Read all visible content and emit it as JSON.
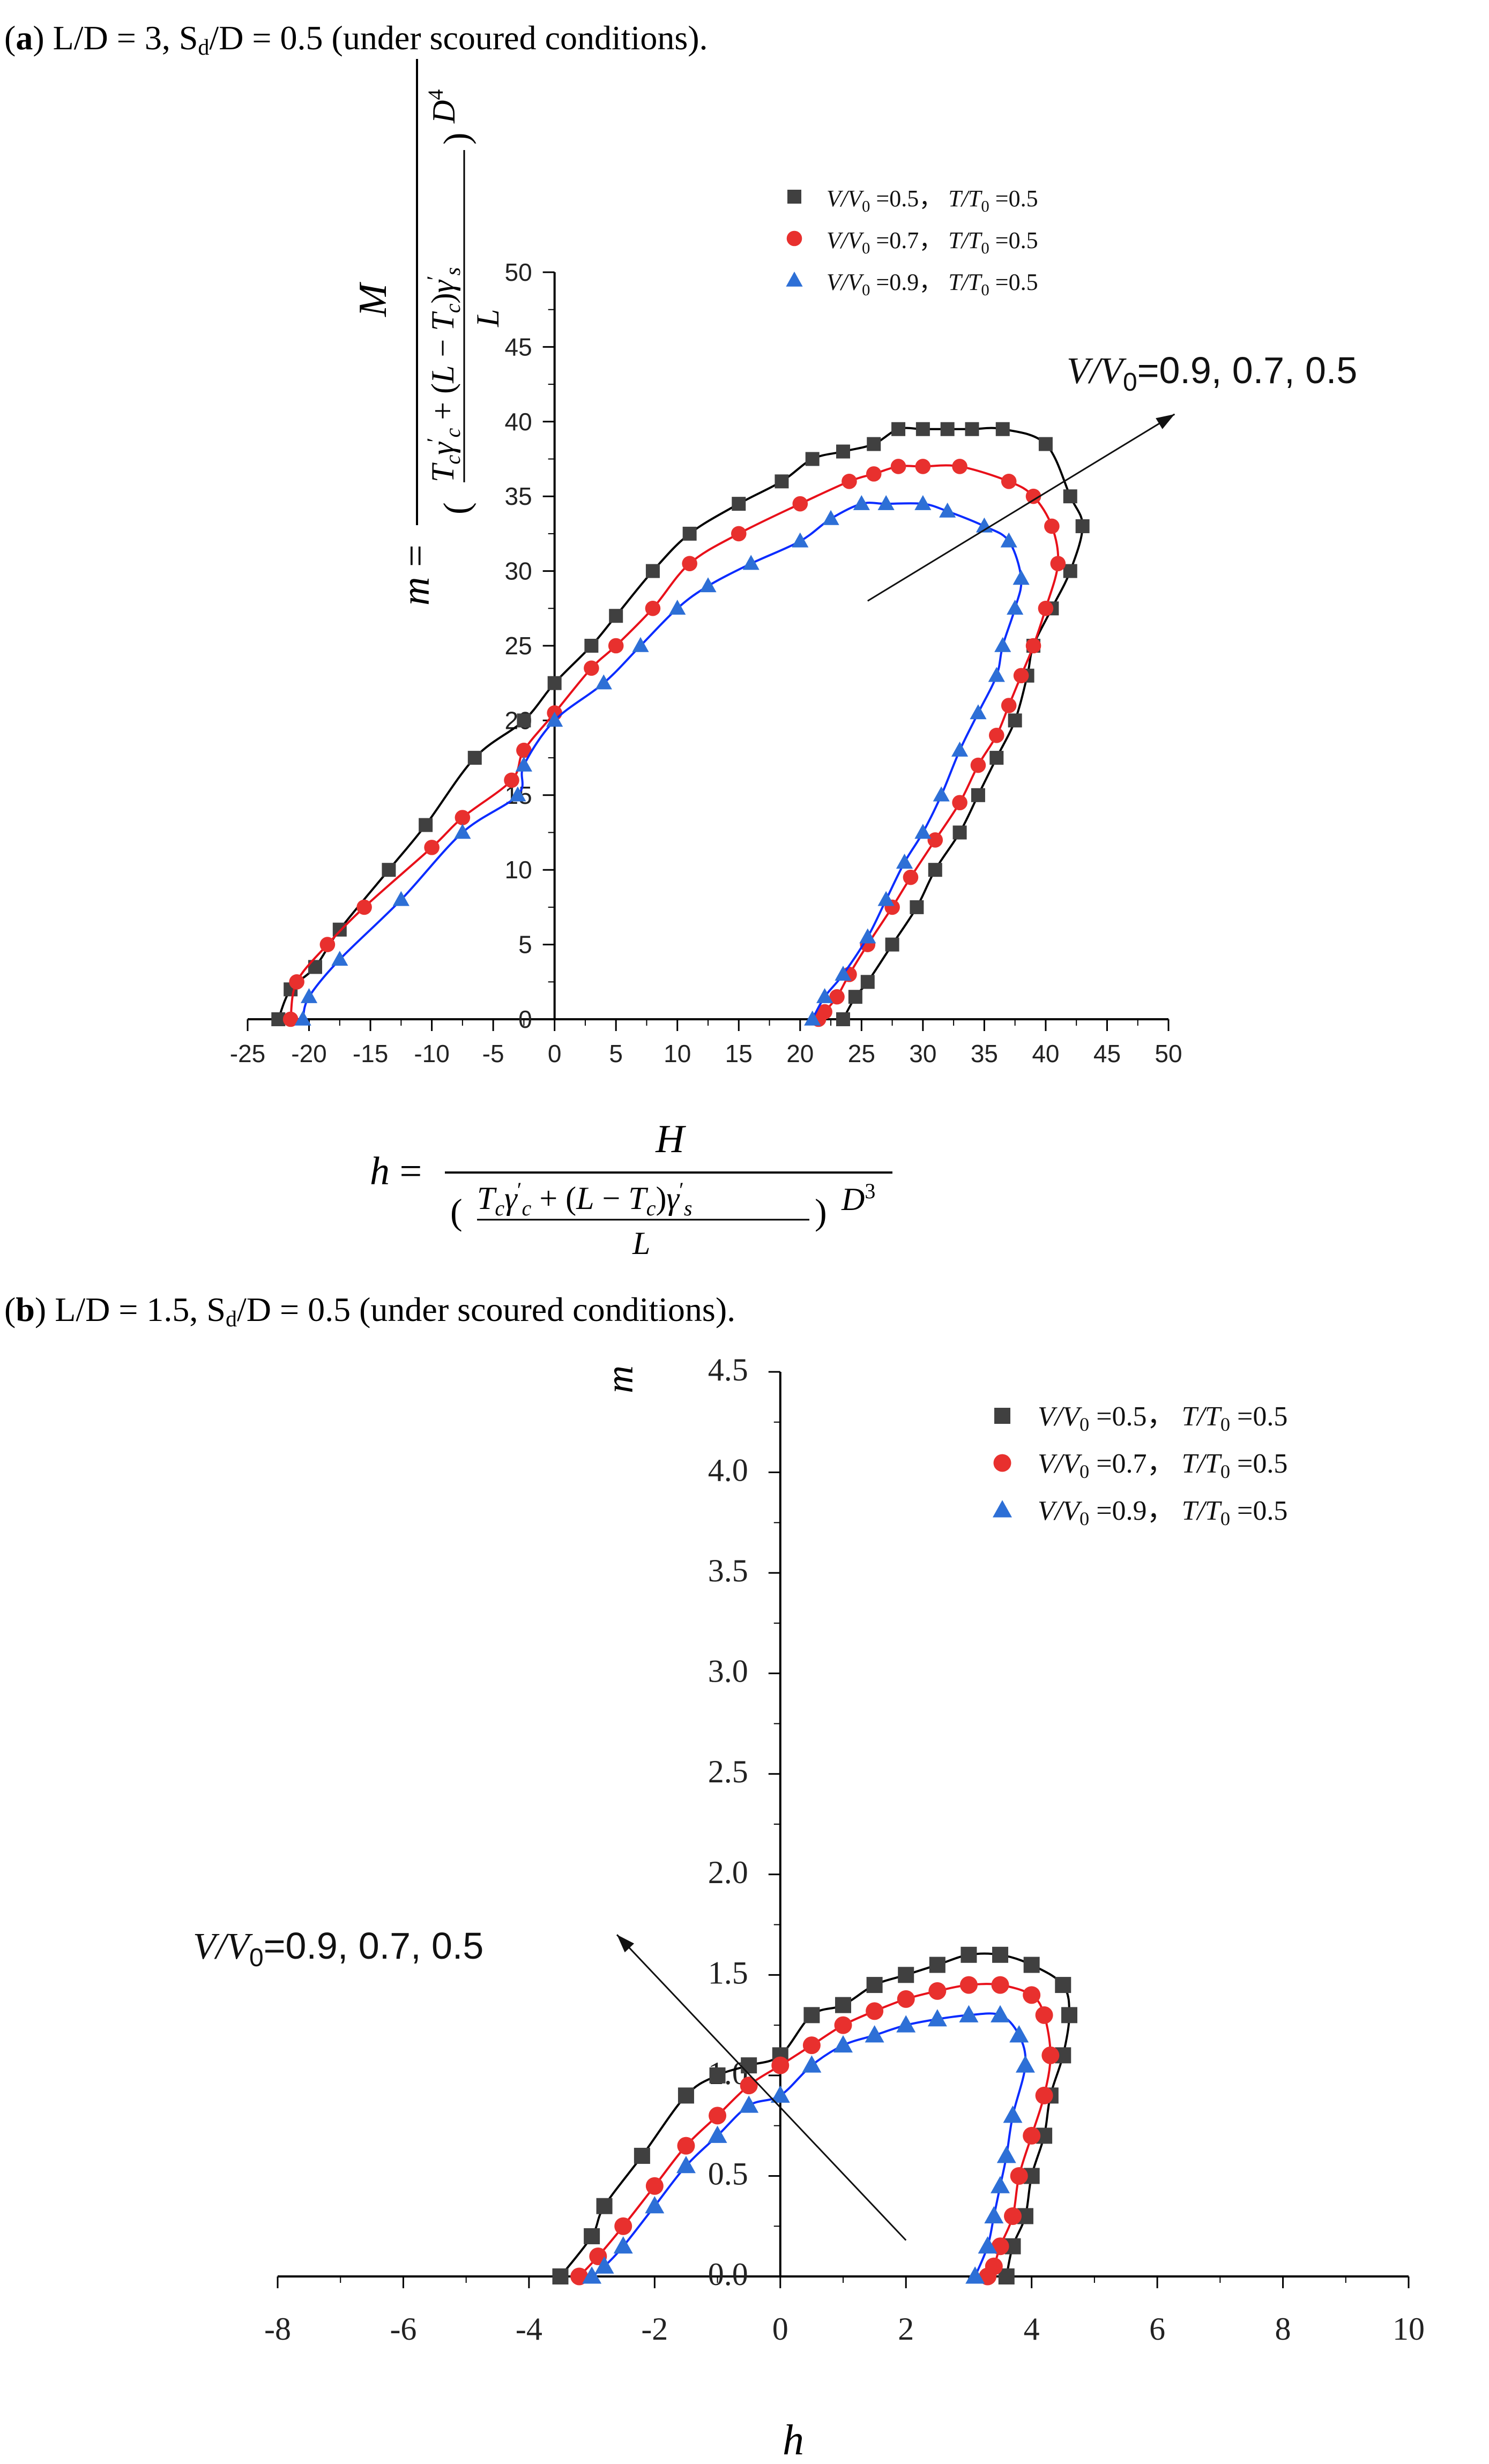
{
  "captions": {
    "a": {
      "label": "a",
      "text": " L/D = 3, S",
      "sub": "d",
      "rest": "/D = 0.5 (under scoured conditions)."
    },
    "b": {
      "label": "b",
      "text": " L/D = 1.5, S",
      "sub": "d",
      "rest": "/D = 0.5 (under scoured conditions)."
    }
  },
  "colors": {
    "s05": "#404040",
    "s07": "#e8302e",
    "s09": "#2d6fd6",
    "line05": "#000000",
    "line07": "#e8101a",
    "line09": "#0a2cff",
    "arrow": "#111111"
  },
  "chart_data": [
    {
      "type": "scatter",
      "panel": "a",
      "ylabel": "m = M / (((T_c γ'_c + (L − T_c) γ'_s) / L) D^4)",
      "xlabel": "h = H / (((T_c γ'_c + (L − T_c) γ'_s) / L) D^3)",
      "xlim": [
        -25,
        50
      ],
      "ylim": [
        0,
        50
      ],
      "xticks": [
        -25,
        -20,
        -15,
        -10,
        -5,
        0,
        5,
        10,
        15,
        20,
        25,
        30,
        35,
        40,
        45,
        50
      ],
      "yticks": [
        0,
        5,
        10,
        15,
        20,
        25,
        30,
        35,
        40,
        45,
        50
      ],
      "annotation": "V/V0=0.9, 0.7, 0.5",
      "annotation_arrow": {
        "from": [
          25.5,
          28
        ],
        "to": [
          50.5,
          40.5
        ]
      },
      "legend": {
        "placement": "top-right"
      },
      "series": [
        {
          "name": "V/V0 =0.5，T/T0=0.5",
          "marker": "square",
          "points": [
            [
              -22.5,
              0
            ],
            [
              -21.5,
              2
            ],
            [
              -19.5,
              3.5
            ],
            [
              -17.5,
              6
            ],
            [
              -13.5,
              10
            ],
            [
              -10.5,
              13
            ],
            [
              -6.5,
              17.5
            ],
            [
              -2.5,
              20
            ],
            [
              0,
              22.5
            ],
            [
              3,
              25
            ],
            [
              5,
              27
            ],
            [
              8,
              30
            ],
            [
              11,
              32.5
            ],
            [
              15,
              34.5
            ],
            [
              18.5,
              36
            ],
            [
              21,
              37.5
            ],
            [
              23.5,
              38
            ],
            [
              26,
              38.5
            ],
            [
              28,
              39.5
            ],
            [
              30,
              39.5
            ],
            [
              32,
              39.5
            ],
            [
              34,
              39.5
            ],
            [
              36.5,
              39.5
            ],
            [
              40,
              38.5
            ],
            [
              42,
              35
            ],
            [
              43,
              33
            ],
            [
              42,
              30
            ],
            [
              40.5,
              27.5
            ],
            [
              39,
              25
            ],
            [
              38.5,
              23
            ],
            [
              37.5,
              20
            ],
            [
              36,
              17.5
            ],
            [
              34.5,
              15
            ],
            [
              33,
              12.5
            ],
            [
              31,
              10
            ],
            [
              29.5,
              7.5
            ],
            [
              27.5,
              5
            ],
            [
              25.5,
              2.5
            ],
            [
              24.5,
              1.5
            ],
            [
              23.5,
              0
            ]
          ]
        },
        {
          "name": "V/V0 =0.7，T/T0=0.5",
          "marker": "circle",
          "points": [
            [
              -21.5,
              0
            ],
            [
              -21,
              2.5
            ],
            [
              -18.5,
              5
            ],
            [
              -15.5,
              7.5
            ],
            [
              -10,
              11.5
            ],
            [
              -7.5,
              13.5
            ],
            [
              -3.5,
              16
            ],
            [
              -2.5,
              18
            ],
            [
              0,
              20.5
            ],
            [
              3,
              23.5
            ],
            [
              5,
              25
            ],
            [
              8,
              27.5
            ],
            [
              11,
              30.5
            ],
            [
              15,
              32.5
            ],
            [
              20,
              34.5
            ],
            [
              24,
              36
            ],
            [
              26,
              36.5
            ],
            [
              28,
              37
            ],
            [
              30,
              37
            ],
            [
              33,
              37
            ],
            [
              37,
              36
            ],
            [
              39,
              35
            ],
            [
              40.5,
              33
            ],
            [
              41,
              30.5
            ],
            [
              40,
              27.5
            ],
            [
              39,
              25
            ],
            [
              38,
              23
            ],
            [
              37,
              21
            ],
            [
              36,
              19
            ],
            [
              34.5,
              17
            ],
            [
              33,
              14.5
            ],
            [
              31,
              12
            ],
            [
              29,
              9.5
            ],
            [
              27.5,
              7.5
            ],
            [
              25.5,
              5
            ],
            [
              24,
              3
            ],
            [
              23,
              1.5
            ],
            [
              22,
              0.5
            ],
            [
              21.5,
              0
            ]
          ]
        },
        {
          "name": "V/V0 =0.9，T/T0=0.5",
          "marker": "triangle",
          "points": [
            [
              -20.5,
              0
            ],
            [
              -20,
              1.5
            ],
            [
              -17.5,
              4
            ],
            [
              -12.5,
              8
            ],
            [
              -7.5,
              12.5
            ],
            [
              -3,
              15
            ],
            [
              -2.5,
              17
            ],
            [
              0,
              20
            ],
            [
              4,
              22.5
            ],
            [
              7,
              25
            ],
            [
              10,
              27.5
            ],
            [
              12.5,
              29
            ],
            [
              16,
              30.5
            ],
            [
              20,
              32
            ],
            [
              22.5,
              33.5
            ],
            [
              25,
              34.5
            ],
            [
              27,
              34.5
            ],
            [
              30,
              34.5
            ],
            [
              32,
              34
            ],
            [
              35,
              33
            ],
            [
              37,
              32
            ],
            [
              38,
              29.5
            ],
            [
              37.5,
              27.5
            ],
            [
              36.5,
              25
            ],
            [
              36,
              23
            ],
            [
              34.5,
              20.5
            ],
            [
              33,
              18
            ],
            [
              31.5,
              15
            ],
            [
              30,
              12.5
            ],
            [
              28.5,
              10.5
            ],
            [
              27,
              8
            ],
            [
              25.5,
              5.5
            ],
            [
              23.5,
              3
            ],
            [
              22,
              1.5
            ],
            [
              21,
              0
            ]
          ]
        }
      ]
    },
    {
      "type": "scatter",
      "panel": "b",
      "ylabel": "m",
      "xlabel": "h",
      "xlim": [
        -8,
        10
      ],
      "ylim": [
        0,
        4.5
      ],
      "xticks": [
        -8,
        -6,
        -4,
        -2,
        0,
        2,
        4,
        6,
        8,
        10
      ],
      "yticks": [
        "0.0",
        "0.5",
        "1.0",
        "1.5",
        "2.0",
        "2.5",
        "3.0",
        "3.5",
        "4.0",
        "4.5"
      ],
      "annotation": "V/V0=0.9, 0.7, 0.5",
      "annotation_arrow": {
        "from": [
          2,
          0.18
        ],
        "to": [
          -2.6,
          1.7
        ]
      },
      "legend": {
        "placement": "top-right"
      },
      "series": [
        {
          "name": "V/V0 =0.5，T/T0=0.5",
          "marker": "square",
          "points": [
            [
              -3.5,
              0
            ],
            [
              -3,
              0.2
            ],
            [
              -2.8,
              0.35
            ],
            [
              -2.2,
              0.6
            ],
            [
              -1.5,
              0.9
            ],
            [
              -1,
              1.0
            ],
            [
              -0.5,
              1.05
            ],
            [
              0,
              1.1
            ],
            [
              0.5,
              1.3
            ],
            [
              1,
              1.35
            ],
            [
              1.5,
              1.45
            ],
            [
              2,
              1.5
            ],
            [
              2.5,
              1.55
            ],
            [
              3,
              1.6
            ],
            [
              3.5,
              1.6
            ],
            [
              4,
              1.55
            ],
            [
              4.5,
              1.45
            ],
            [
              4.6,
              1.3
            ],
            [
              4.5,
              1.1
            ],
            [
              4.3,
              0.9
            ],
            [
              4.2,
              0.7
            ],
            [
              4,
              0.5
            ],
            [
              3.9,
              0.3
            ],
            [
              3.7,
              0.15
            ],
            [
              3.6,
              0
            ]
          ]
        },
        {
          "name": "V/V0 =0.7，T/T0=0.5",
          "marker": "circle",
          "points": [
            [
              -3.2,
              0
            ],
            [
              -2.9,
              0.1
            ],
            [
              -2.5,
              0.25
            ],
            [
              -2,
              0.45
            ],
            [
              -1.5,
              0.65
            ],
            [
              -1,
              0.8
            ],
            [
              -0.5,
              0.95
            ],
            [
              0,
              1.05
            ],
            [
              0.5,
              1.15
            ],
            [
              1,
              1.25
            ],
            [
              1.5,
              1.32
            ],
            [
              2,
              1.38
            ],
            [
              2.5,
              1.42
            ],
            [
              3,
              1.45
            ],
            [
              3.5,
              1.45
            ],
            [
              4,
              1.4
            ],
            [
              4.2,
              1.3
            ],
            [
              4.3,
              1.1
            ],
            [
              4.2,
              0.9
            ],
            [
              4,
              0.7
            ],
            [
              3.8,
              0.5
            ],
            [
              3.7,
              0.3
            ],
            [
              3.5,
              0.15
            ],
            [
              3.4,
              0.05
            ],
            [
              3.3,
              0
            ]
          ]
        },
        {
          "name": "V/V0 =0.9，T/T0=0.5",
          "marker": "triangle",
          "points": [
            [
              -3,
              0
            ],
            [
              -2.8,
              0.05
            ],
            [
              -2.5,
              0.15
            ],
            [
              -2,
              0.35
            ],
            [
              -1.5,
              0.55
            ],
            [
              -1,
              0.7
            ],
            [
              -0.5,
              0.85
            ],
            [
              0,
              0.9
            ],
            [
              0.5,
              1.05
            ],
            [
              1,
              1.15
            ],
            [
              1.5,
              1.2
            ],
            [
              2,
              1.25
            ],
            [
              2.5,
              1.28
            ],
            [
              3,
              1.3
            ],
            [
              3.5,
              1.3
            ],
            [
              3.8,
              1.2
            ],
            [
              3.9,
              1.05
            ],
            [
              3.7,
              0.8
            ],
            [
              3.6,
              0.6
            ],
            [
              3.5,
              0.45
            ],
            [
              3.4,
              0.3
            ],
            [
              3.3,
              0.15
            ],
            [
              3.1,
              0
            ]
          ]
        }
      ]
    }
  ]
}
